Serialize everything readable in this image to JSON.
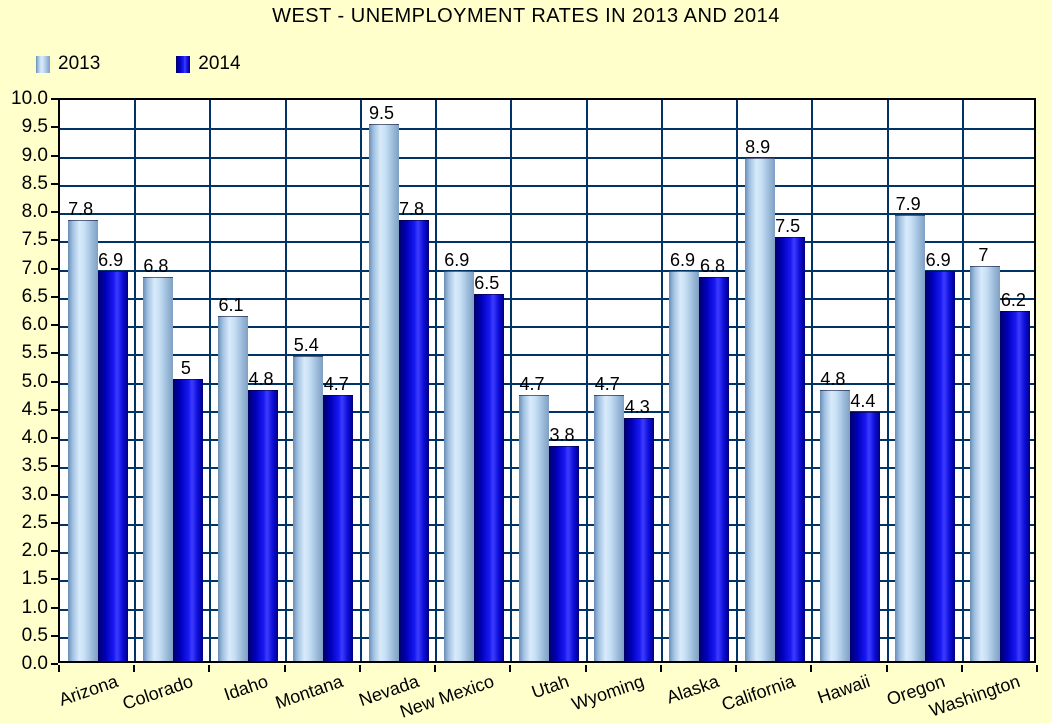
{
  "title": "WEST - UNEMPLOYMENT RATES IN 2013 AND 2014",
  "legend": {
    "items": [
      {
        "label": "2013"
      },
      {
        "label": "2014"
      }
    ]
  },
  "chart_data": {
    "type": "bar",
    "title": "WEST - UNEMPLOYMENT RATES IN 2013 AND 2014",
    "categories": [
      "Arizona",
      "Colorado",
      "Idaho",
      "Montana",
      "Nevada",
      "New Mexico",
      "Utah",
      "Wyoming",
      "Alaska",
      "California",
      "Hawaii",
      "Oregon",
      "Washington"
    ],
    "series": [
      {
        "name": "2013",
        "values": [
          7.8,
          6.8,
          6.1,
          5.4,
          9.5,
          6.9,
          4.7,
          4.7,
          6.9,
          8.9,
          4.8,
          7.9,
          7
        ]
      },
      {
        "name": "2014",
        "values": [
          6.9,
          5,
          4.8,
          4.7,
          7.8,
          6.5,
          3.8,
          4.3,
          6.8,
          7.5,
          4.4,
          6.9,
          6.2
        ]
      }
    ],
    "data_labels_shown": true,
    "xlabel": "",
    "ylabel": "",
    "ylim": [
      0,
      10
    ],
    "ytick_step": 0.5,
    "ytick_decimals": 1,
    "grid": true,
    "legend_position": "top-left",
    "colors": {
      "background": "#FFFFCC",
      "plot_background": "#FFFFFF",
      "gridline": "#003366",
      "axis": "#000000",
      "series_2013_light_blue": "#C6DFF4",
      "series_2014_dark_blue": "#1818F2",
      "text": "#000000"
    }
  }
}
